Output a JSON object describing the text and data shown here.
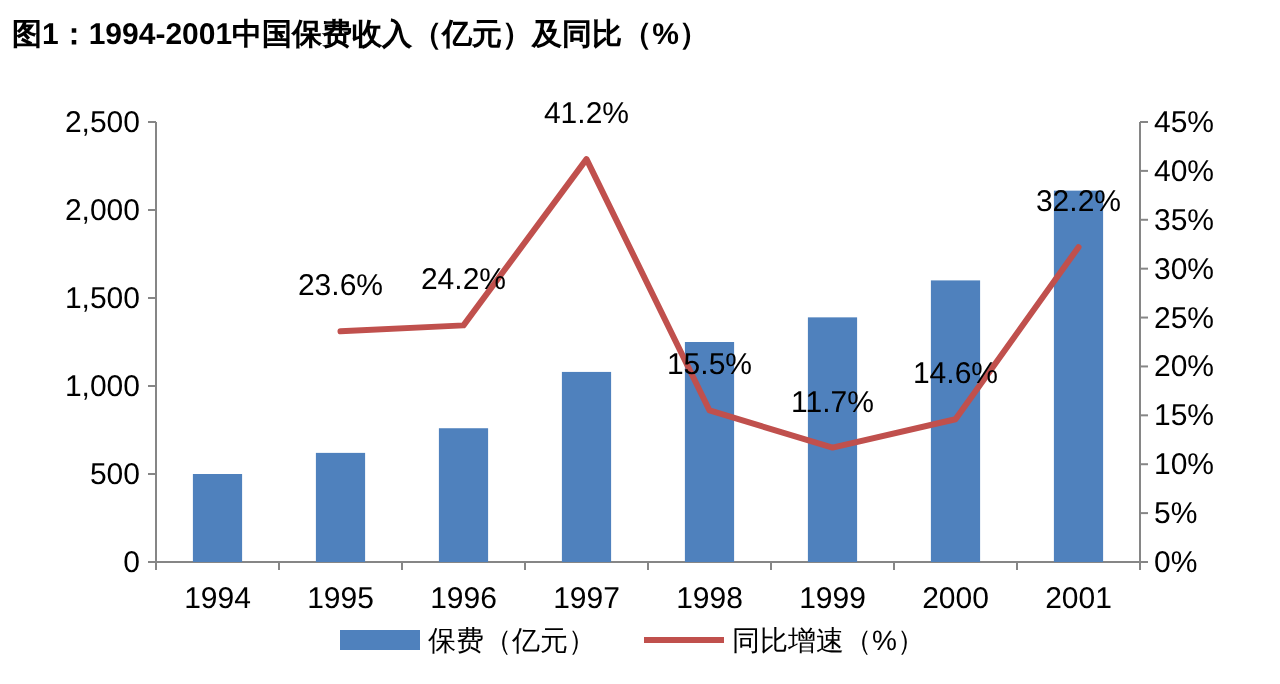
{
  "chart_data": {
    "type": "bar",
    "title": "图1：1994-2001中国保费收入（亿元）及同比（%）",
    "categories": [
      "1994",
      "1995",
      "1996",
      "1997",
      "1998",
      "1999",
      "2000",
      "2001"
    ],
    "series": [
      {
        "name": "保费（亿元）",
        "color": "#4f81bd",
        "values": [
          500,
          620,
          760,
          1080,
          1250,
          1390,
          1600,
          2110
        ]
      },
      {
        "name": "同比增速（%）",
        "type": "line",
        "axis": "y2",
        "color": "#c0504d",
        "values": [
          null,
          23.6,
          24.2,
          41.2,
          15.5,
          11.7,
          14.6,
          32.2
        ],
        "value_labels": [
          null,
          "23.6%",
          "24.2%",
          "41.2%",
          "15.5%",
          "11.7%",
          "14.6%",
          "32.2%"
        ]
      }
    ],
    "ylim": [
      0,
      2500
    ],
    "yticks": [
      0,
      {
        "value": 500,
        "label": "500"
      },
      {
        "value": 1000,
        "label": "1,000"
      },
      {
        "value": 1500,
        "label": "1,500"
      },
      {
        "value": 2000,
        "label": "2,000"
      },
      {
        "value": 2500,
        "label": "2,500"
      }
    ],
    "y2lim": [
      0,
      45
    ],
    "y2ticks": [
      {
        "value": 0,
        "label": "0%"
      },
      {
        "value": 5,
        "label": "5%"
      },
      {
        "value": 10,
        "label": "10%"
      },
      {
        "value": 15,
        "label": "15%"
      },
      {
        "value": 20,
        "label": "20%"
      },
      {
        "value": 25,
        "label": "25%"
      },
      {
        "value": 30,
        "label": "30%"
      },
      {
        "value": 35,
        "label": "35%"
      },
      {
        "value": 40,
        "label": "40%"
      },
      {
        "value": 45,
        "label": "45%"
      }
    ],
    "legend": "bottom",
    "grid": false
  }
}
